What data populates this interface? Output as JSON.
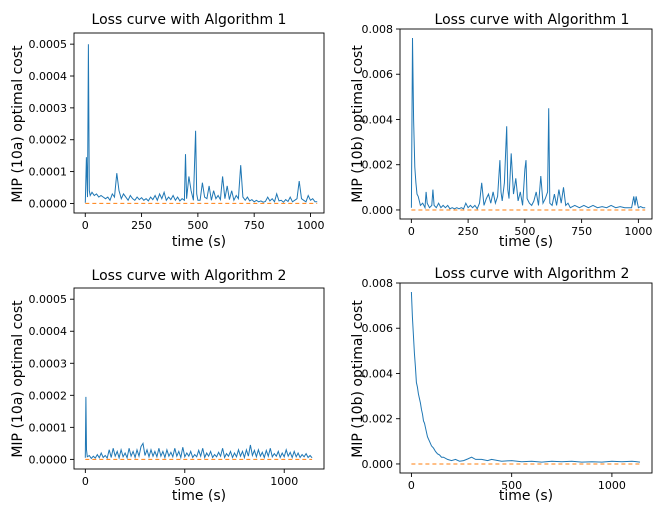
{
  "chart_data": [
    {
      "type": "line",
      "title": "Loss curve with Algorithm 1",
      "xlabel": "time (s)",
      "ylabel": "MIP (10a) optimal cost",
      "xlim": [
        -50,
        1060
      ],
      "ylim": [
        -3e-05,
        0.000535
      ],
      "x_ticks": [
        0,
        250,
        500,
        750,
        1000
      ],
      "y_ticks": [
        0.0,
        0.0001,
        0.0002,
        0.0003,
        0.0004,
        0.0005
      ],
      "y_tick_labels": [
        "0.0000",
        "0.0001",
        "0.0002",
        "0.0003",
        "0.0004",
        "0.0005"
      ],
      "series": [
        {
          "color": "#1f77b4",
          "style": "solid",
          "x": [
            0,
            5,
            10,
            14,
            18,
            22,
            26,
            30,
            40,
            50,
            60,
            70,
            80,
            90,
            100,
            110,
            120,
            130,
            140,
            150,
            160,
            170,
            180,
            190,
            200,
            210,
            220,
            230,
            240,
            250,
            260,
            270,
            280,
            290,
            300,
            310,
            320,
            330,
            340,
            350,
            360,
            370,
            380,
            390,
            400,
            410,
            420,
            430,
            440,
            445,
            450,
            460,
            470,
            480,
            490,
            495,
            500,
            510,
            520,
            530,
            540,
            550,
            560,
            570,
            580,
            590,
            600,
            610,
            620,
            630,
            640,
            650,
            660,
            670,
            680,
            690,
            700,
            710,
            720,
            730,
            740,
            750,
            760,
            770,
            780,
            790,
            800,
            810,
            820,
            830,
            840,
            850,
            860,
            870,
            880,
            890,
            900,
            910,
            920,
            930,
            940,
            950,
            960,
            970,
            980,
            990,
            1000,
            1010,
            1020,
            1030
          ],
          "y": [
            2e-06,
            0.000145,
            2e-05,
            0.0005,
            4e-05,
            2.5e-05,
            3e-05,
            3.5e-05,
            2.5e-05,
            3e-05,
            2e-05,
            2.5e-05,
            2e-05,
            1.5e-05,
            2e-05,
            1e-05,
            3e-05,
            2e-05,
            9.5e-05,
            4e-05,
            1.5e-05,
            3e-05,
            2e-05,
            1e-05,
            2.5e-05,
            1.5e-05,
            1e-05,
            2e-05,
            1.2e-05,
            1.8e-05,
            1e-05,
            1.5e-05,
            8e-06,
            2e-05,
            1.2e-05,
            2.5e-05,
            1e-05,
            3e-05,
            1.5e-05,
            3.5e-05,
            1e-05,
            2e-05,
            1.2e-05,
            2.5e-05,
            1e-05,
            2e-05,
            8e-06,
            1.5e-05,
            1e-05,
            0.000155,
            1.5e-05,
            8.5e-05,
            4e-05,
            1e-05,
            0.000228,
            3e-05,
            1e-05,
            1e-05,
            6.5e-05,
            2e-05,
            1.5e-05,
            5.5e-05,
            1e-05,
            4e-05,
            1.5e-05,
            2.5e-05,
            1.2e-05,
            8.5e-05,
            1.5e-05,
            5.5e-05,
            1.2e-05,
            4e-05,
            1e-05,
            2.5e-05,
            1.5e-05,
            0.00012,
            2e-05,
            1e-05,
            2e-05,
            8e-06,
            1.2e-05,
            5e-06,
            1e-05,
            5e-06,
            8e-06,
            4e-06,
            6e-06,
            2e-05,
            8e-06,
            1.5e-05,
            5e-06,
            3e-05,
            8e-06,
            1e-05,
            4e-06,
            1.2e-05,
            6e-06,
            2e-05,
            5e-06,
            1e-05,
            1.5e-05,
            7e-05,
            1.5e-05,
            1e-05,
            5e-06,
            2.5e-05,
            1e-05,
            1.5e-05,
            5e-06,
            5e-06
          ]
        },
        {
          "color": "#ff7f0e",
          "style": "dashed",
          "x": [
            0,
            1030
          ],
          "y": [
            0.0,
            0.0
          ]
        }
      ]
    },
    {
      "type": "line",
      "title": "Loss curve with Algorithm 1",
      "xlabel": "time (s)",
      "ylabel": "MIP (10b) optimal cost",
      "xlim": [
        -50,
        1060
      ],
      "ylim": [
        -0.0004,
        0.008
      ],
      "x_ticks": [
        0,
        250,
        500,
        750,
        1000
      ],
      "y_ticks": [
        0.0,
        0.002,
        0.004,
        0.006,
        0.008
      ],
      "y_tick_labels": [
        "0.000",
        "0.002",
        "0.004",
        "0.006",
        "0.008"
      ],
      "series": [
        {
          "color": "#1f77b4",
          "style": "solid",
          "x": [
            0,
            5,
            10,
            15,
            20,
            25,
            30,
            40,
            50,
            60,
            65,
            70,
            80,
            90,
            95,
            100,
            110,
            120,
            130,
            140,
            150,
            160,
            170,
            180,
            190,
            200,
            210,
            220,
            230,
            240,
            250,
            260,
            270,
            280,
            290,
            300,
            310,
            320,
            330,
            340,
            350,
            360,
            370,
            380,
            390,
            395,
            400,
            410,
            420,
            425,
            430,
            440,
            450,
            460,
            470,
            480,
            490,
            500,
            505,
            510,
            520,
            530,
            540,
            550,
            560,
            570,
            580,
            590,
            600,
            605,
            610,
            620,
            630,
            640,
            650,
            660,
            670,
            680,
            690,
            700,
            720,
            740,
            760,
            780,
            800,
            820,
            840,
            860,
            880,
            900,
            920,
            940,
            960,
            970,
            980,
            985,
            990,
            1000,
            1010,
            1020,
            1030
          ],
          "y": [
            0.0001,
            0.0076,
            0.004,
            0.0019,
            0.0012,
            0.0007,
            0.0006,
            0.0002,
            0.0003,
            0.0001,
            0.0008,
            0.0003,
            0.0001,
            0.0002,
            0.0009,
            0.0002,
            0.0001,
            0.0003,
            0.0001,
            0.0002,
            0.0001,
            0.0002,
            5e-05,
            0.0001,
            5e-05,
            0.0001,
            5e-05,
            0.0001,
            5e-05,
            0.0003,
            0.0001,
            0.0002,
            0.0001,
            0.0002,
            5e-05,
            0.0003,
            0.0012,
            0.0002,
            0.0005,
            0.0007,
            0.0003,
            0.0008,
            0.0003,
            0.0006,
            0.0022,
            0.0008,
            0.0004,
            0.0012,
            0.0037,
            0.0009,
            0.0005,
            0.0025,
            0.0007,
            0.0014,
            0.0004,
            0.0008,
            0.0002,
            0.0018,
            0.0022,
            0.0005,
            0.0003,
            0.0002,
            0.0004,
            0.0008,
            0.0002,
            0.0015,
            0.0003,
            0.0005,
            0.0008,
            0.0045,
            0.0003,
            0.0002,
            0.0007,
            0.0002,
            0.0009,
            0.0003,
            0.001,
            0.0002,
            0.0003,
            0.0001,
            0.0002,
            0.0001,
            0.0002,
            0.0001,
            0.0002,
            0.0001,
            0.00015,
            0.0001,
            0.0002,
            0.0001,
            0.00015,
            0.0001,
            0.0001,
            0.0001,
            0.0006,
            0.0002,
            0.0006,
            0.0001,
            0.00015,
            0.0001,
            0.0001
          ]
        },
        {
          "color": "#ff7f0e",
          "style": "dashed",
          "x": [
            0,
            1030
          ],
          "y": [
            0.0,
            0.0
          ]
        }
      ]
    },
    {
      "type": "line",
      "title": "Loss curve with Algorithm 2",
      "xlabel": "time (s)",
      "ylabel": "MIP (10a) optimal cost",
      "xlim": [
        -57,
        1200
      ],
      "ylim": [
        -3e-05,
        0.000535
      ],
      "x_ticks": [
        0,
        500,
        1000
      ],
      "y_ticks": [
        0.0,
        0.0001,
        0.0002,
        0.0003,
        0.0004,
        0.0005
      ],
      "y_tick_labels": [
        "0.0000",
        "0.0001",
        "0.0002",
        "0.0003",
        "0.0004",
        "0.0005"
      ],
      "series": [
        {
          "color": "#1f77b4",
          "style": "solid",
          "x": [
            0,
            3,
            6,
            10,
            20,
            30,
            40,
            50,
            60,
            70,
            80,
            90,
            100,
            110,
            120,
            130,
            140,
            150,
            160,
            170,
            180,
            190,
            200,
            210,
            220,
            230,
            240,
            250,
            260,
            270,
            280,
            290,
            300,
            310,
            320,
            330,
            340,
            350,
            360,
            370,
            380,
            390,
            400,
            410,
            420,
            430,
            440,
            450,
            460,
            470,
            480,
            490,
            500,
            510,
            520,
            530,
            540,
            550,
            560,
            570,
            580,
            590,
            600,
            610,
            620,
            630,
            640,
            650,
            660,
            670,
            680,
            690,
            700,
            710,
            720,
            730,
            740,
            750,
            760,
            770,
            780,
            790,
            800,
            810,
            820,
            830,
            840,
            850,
            860,
            870,
            880,
            890,
            900,
            910,
            920,
            930,
            940,
            950,
            960,
            970,
            980,
            990,
            1000,
            1010,
            1020,
            1030,
            1040,
            1050,
            1060,
            1070,
            1080,
            1090,
            1100,
            1110,
            1120,
            1130,
            1140
          ],
          "y": [
            5e-06,
            0.000195,
            3e-05,
            8e-06,
            1.2e-05,
            3e-06,
            1e-05,
            4e-06,
            1.5e-05,
            5e-06,
            2e-05,
            6e-06,
            1.2e-05,
            4e-06,
            3e-05,
            6e-06,
            3.5e-05,
            1e-05,
            2.5e-05,
            5e-06,
            3e-05,
            8e-06,
            2e-05,
            5e-06,
            3.5e-05,
            1e-05,
            2.5e-05,
            6e-06,
            3e-05,
            1e-05,
            4e-05,
            5e-05,
            1.2e-05,
            3e-05,
            8e-06,
            3e-05,
            1e-05,
            2.5e-05,
            8e-06,
            3.5e-05,
            1e-05,
            2.5e-05,
            6e-06,
            3e-05,
            1e-05,
            2.2e-05,
            8e-06,
            3.5e-05,
            1e-05,
            2.5e-05,
            6e-06,
            3.8e-05,
            8e-06,
            2e-05,
            1e-05,
            2.5e-05,
            6e-06,
            1.5e-05,
            8e-06,
            2.8e-05,
            1e-05,
            3.5e-05,
            6e-06,
            2e-05,
            1e-05,
            2.5e-05,
            6e-06,
            1.5e-05,
            8e-06,
            2.2e-05,
            1e-05,
            3.5e-05,
            6e-06,
            1.8e-05,
            1e-05,
            2.5e-05,
            6e-06,
            2e-05,
            8e-06,
            3e-05,
            1e-05,
            2.5e-05,
            6e-06,
            3e-05,
            1e-05,
            4.5e-05,
            1.2e-05,
            2.8e-05,
            8e-06,
            3e-05,
            1e-05,
            2.2e-05,
            6e-06,
            2.8e-05,
            1e-05,
            3.5e-05,
            8e-06,
            1.8e-05,
            1e-05,
            2.5e-05,
            6e-06,
            2e-05,
            8e-06,
            3e-05,
            1e-05,
            2.2e-05,
            6e-06,
            2.5e-05,
            8e-06,
            2e-05,
            6e-06,
            1.5e-05,
            8e-06,
            1.8e-05,
            6e-06,
            1.2e-05,
            5e-06
          ]
        },
        {
          "color": "#ff7f0e",
          "style": "dashed",
          "x": [
            0,
            1140
          ],
          "y": [
            0.0,
            0.0
          ]
        }
      ]
    },
    {
      "type": "line",
      "title": "Loss curve with Algorithm 2",
      "xlabel": "time (s)",
      "ylabel": "MIP (10b) optimal cost",
      "xlim": [
        -57,
        1200
      ],
      "ylim": [
        -0.0004,
        0.008
      ],
      "x_ticks": [
        0,
        500,
        1000
      ],
      "y_ticks": [
        0.0,
        0.002,
        0.004,
        0.006,
        0.008
      ],
      "y_tick_labels": [
        "0.000",
        "0.002",
        "0.004",
        "0.006",
        "0.008"
      ],
      "series": [
        {
          "color": "#1f77b4",
          "style": "solid",
          "x": [
            0,
            5,
            10,
            15,
            20,
            25,
            30,
            35,
            40,
            45,
            50,
            55,
            60,
            65,
            70,
            80,
            90,
            100,
            110,
            120,
            130,
            140,
            150,
            160,
            180,
            200,
            220,
            240,
            260,
            280,
            300,
            320,
            350,
            380,
            400,
            450,
            500,
            550,
            600,
            650,
            700,
            750,
            800,
            850,
            900,
            950,
            1000,
            1050,
            1100,
            1140
          ],
          "y": [
            0.0076,
            0.0065,
            0.0057,
            0.0049,
            0.0043,
            0.0036,
            0.0034,
            0.0031,
            0.0029,
            0.0027,
            0.0024,
            0.0022,
            0.0019,
            0.0018,
            0.0016,
            0.0012,
            0.001,
            0.0008,
            0.0007,
            0.00055,
            0.00045,
            0.0004,
            0.0003,
            0.0003,
            0.0002,
            0.00015,
            0.0002,
            0.00012,
            0.00015,
            0.00022,
            0.0003,
            0.0002,
            0.0002,
            0.00015,
            0.0002,
            0.00012,
            0.00015,
            0.0001,
            0.00012,
            8e-05,
            0.00012,
            0.0001,
            0.00012,
            8e-05,
            0.0001,
            8e-05,
            0.00012,
            0.0001,
            0.00012,
            8e-05
          ]
        },
        {
          "color": "#ff7f0e",
          "style": "dashed",
          "x": [
            0,
            1140
          ],
          "y": [
            0.0,
            0.0
          ]
        }
      ]
    }
  ]
}
